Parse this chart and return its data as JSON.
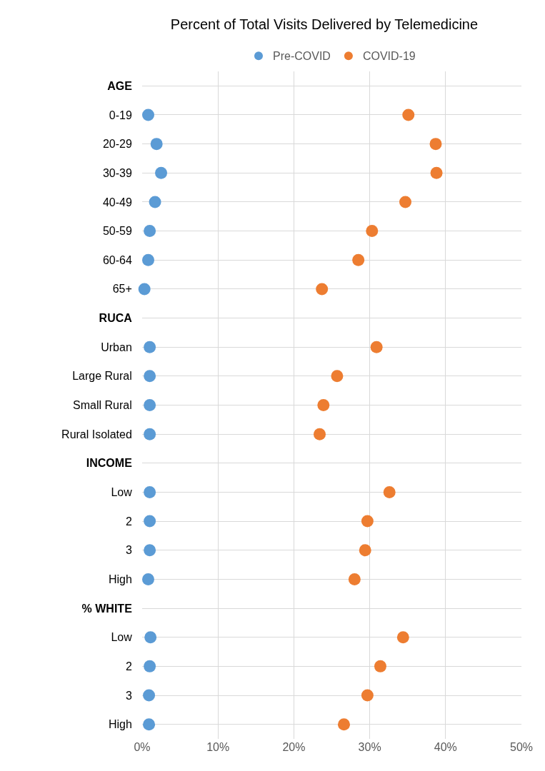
{
  "chart_data": {
    "type": "scatter",
    "title": "Percent of Total Visits Delivered by Telemedicine",
    "orientation": "horizontal",
    "categories": [
      "AGE",
      "0-19",
      "20-29",
      "30-39",
      "40-49",
      "50-59",
      "60-64",
      "65+",
      "RUCA",
      "Urban",
      "Large Rural",
      "Small Rural",
      "Rural Isolated",
      "INCOME",
      "Low",
      "2",
      "3",
      "High",
      "% WHITE",
      "Low",
      "2",
      "3",
      "High"
    ],
    "series": [
      {
        "name": "Pre-COVID",
        "color": "#5b9bd5",
        "values": [
          null,
          0.8,
          1.9,
          2.5,
          1.7,
          1.0,
          0.8,
          0.3,
          null,
          1.0,
          1.0,
          1.0,
          1.0,
          null,
          1.0,
          1.0,
          1.0,
          0.8,
          null,
          1.1,
          1.0,
          0.9,
          0.9
        ]
      },
      {
        "name": "COVID-19",
        "color": "#ed7d31",
        "values": [
          null,
          35.1,
          38.7,
          38.8,
          34.7,
          30.3,
          28.5,
          23.7,
          null,
          30.9,
          25.7,
          23.9,
          23.4,
          null,
          32.6,
          29.7,
          29.4,
          28.0,
          null,
          34.4,
          31.4,
          29.7,
          26.6
        ]
      }
    ],
    "xlim": [
      0,
      50
    ],
    "xticks": [
      {
        "value": 0,
        "label": "0%"
      },
      {
        "value": 10,
        "label": "10%"
      },
      {
        "value": 20,
        "label": "20%"
      },
      {
        "value": 30,
        "label": "30%"
      },
      {
        "value": 40,
        "label": "40%"
      },
      {
        "value": 50,
        "label": "50%"
      }
    ],
    "grid": true,
    "legend": "top",
    "marker": "circle"
  }
}
